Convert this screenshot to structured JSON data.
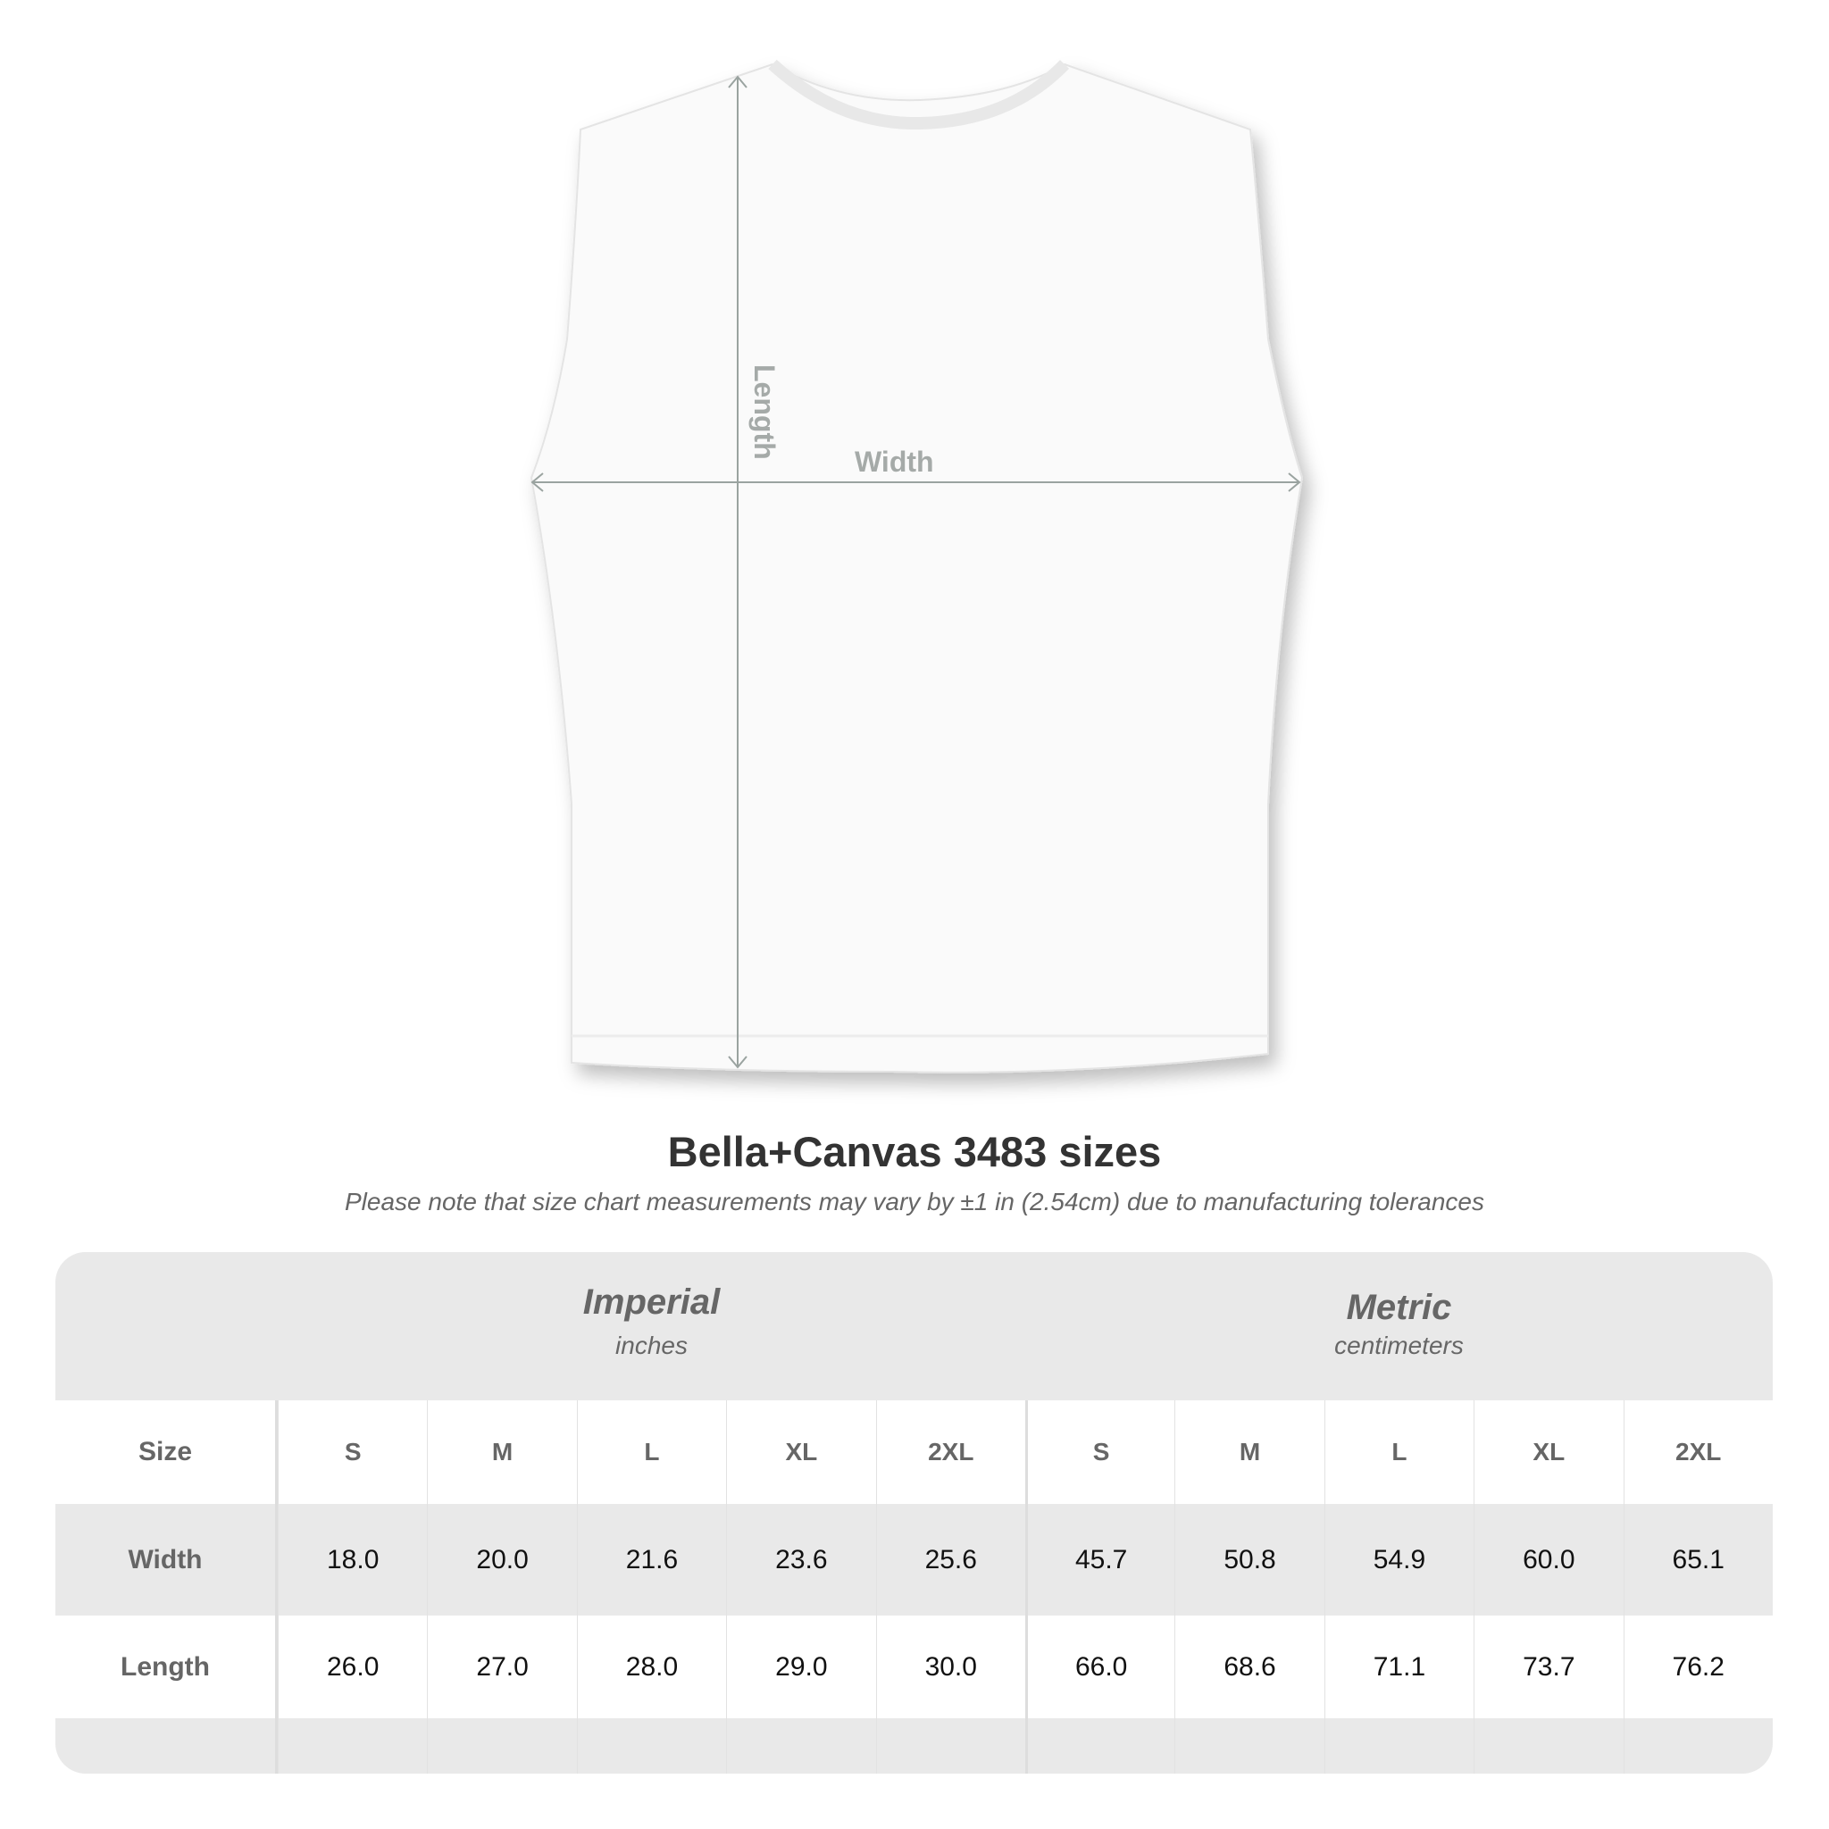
{
  "diagram": {
    "length_label": "Length",
    "width_label": "Width"
  },
  "title": "Bella+Canvas 3483 sizes",
  "subtitle": "Please note that size chart measurements may vary by ±1 in (2.54cm) due to manufacturing tolerances",
  "table": {
    "imperial": {
      "heading": "Imperial",
      "unit": "inches"
    },
    "metric": {
      "heading": "Metric",
      "unit": "centimeters"
    },
    "size_label": "Size",
    "sizes": [
      "S",
      "M",
      "L",
      "XL",
      "2XL",
      "S",
      "M",
      "L",
      "XL",
      "2XL"
    ],
    "rows": [
      {
        "label": "Width",
        "values": [
          "18.0",
          "20.0",
          "21.6",
          "23.6",
          "25.6",
          "45.7",
          "50.8",
          "54.9",
          "60.0",
          "65.1"
        ]
      },
      {
        "label": "Length",
        "values": [
          "26.0",
          "27.0",
          "28.0",
          "29.0",
          "30.0",
          "66.0",
          "68.6",
          "71.1",
          "73.7",
          "76.2"
        ]
      }
    ]
  }
}
